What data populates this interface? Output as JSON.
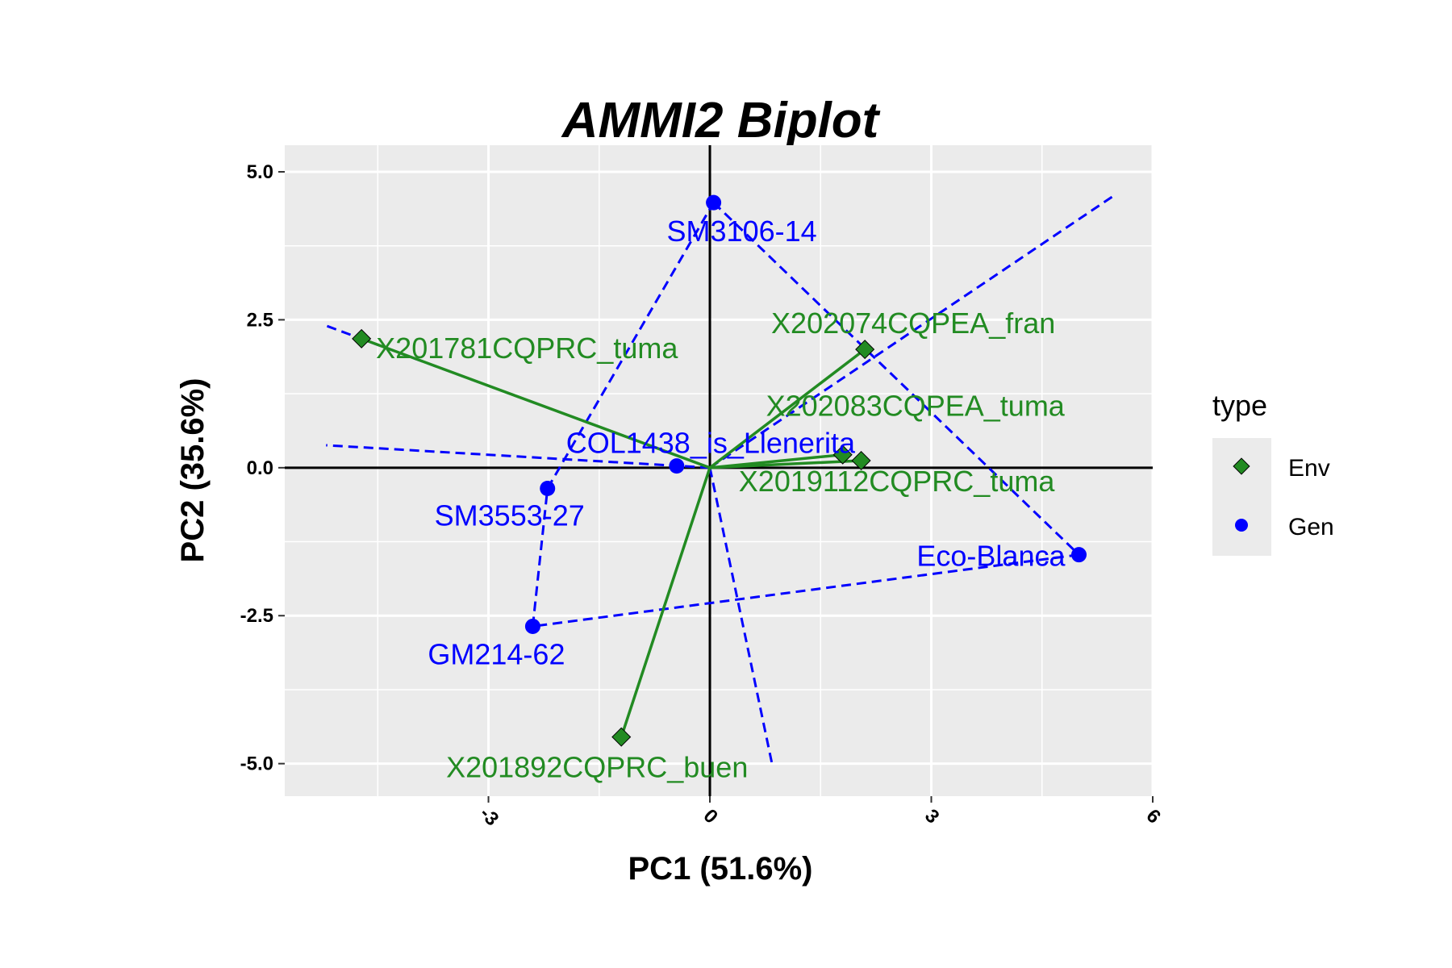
{
  "chart_data": {
    "type": "scatter",
    "title": "AMMI2 Biplot",
    "xlabel": "PC1 (51.6%)",
    "ylabel": "PC2 (35.6%)",
    "xlim": [
      -5.76,
      6.0
    ],
    "ylim": [
      -5.55,
      5.45
    ],
    "x_ticks": [
      -3,
      0,
      3,
      6
    ],
    "y_ticks": [
      -5.0,
      -2.5,
      0.0,
      2.5,
      5.0
    ],
    "x_tick_labels": [
      "-3",
      "0",
      "3",
      "6"
    ],
    "y_tick_labels": [
      "-5.0",
      "-2.5",
      "0.0",
      "2.5",
      "5.0"
    ],
    "grid": true,
    "legend": {
      "title": "type",
      "position": "right",
      "entries": [
        {
          "label": "Env",
          "shape": "diamond",
          "color": "#228B22"
        },
        {
          "label": "Gen",
          "shape": "circle",
          "color": "#0000FF"
        }
      ]
    },
    "colors": {
      "env": "#228B22",
      "gen": "#0000FF",
      "panel": "#EBEBEB",
      "grid": "#FFFFFF"
    },
    "env_points": [
      {
        "name": "X201781CQPRC_tuma",
        "x": -4.72,
        "y": 2.18
      },
      {
        "name": "X202074CQPEA_fran",
        "x": 2.1,
        "y": 2.0
      },
      {
        "name": "X202083CQPEA_tuma",
        "x": 1.8,
        "y": 0.22
      },
      {
        "name": "X2019112CQPRC_tuma",
        "x": 2.05,
        "y": 0.12
      },
      {
        "name": "X201892CQPRC_buen",
        "x": -1.2,
        "y": -4.55
      }
    ],
    "gen_points": [
      {
        "name": "SM3106-14",
        "x": 0.05,
        "y": 4.48
      },
      {
        "name": "COL1438_is_Llenerita",
        "x": -0.45,
        "y": 0.03
      },
      {
        "name": "SM3553-27",
        "x": -2.2,
        "y": -0.35
      },
      {
        "name": "GM214-62",
        "x": -2.4,
        "y": -2.68
      },
      {
        "name": "Eco-Blanca",
        "x": 5.0,
        "y": -1.47
      }
    ],
    "polygon_order": [
      "SM3106-14",
      "Eco-Blanca",
      "GM214-62",
      "SM3553-27",
      "SM3106-14"
    ],
    "sector_rays": [
      {
        "x": -5.2,
        "y": 2.4
      },
      {
        "x": -5.2,
        "y": 0.38
      },
      {
        "x": 5.5,
        "y": 4.62
      },
      {
        "x": 0.85,
        "y": -5.05
      }
    ]
  }
}
